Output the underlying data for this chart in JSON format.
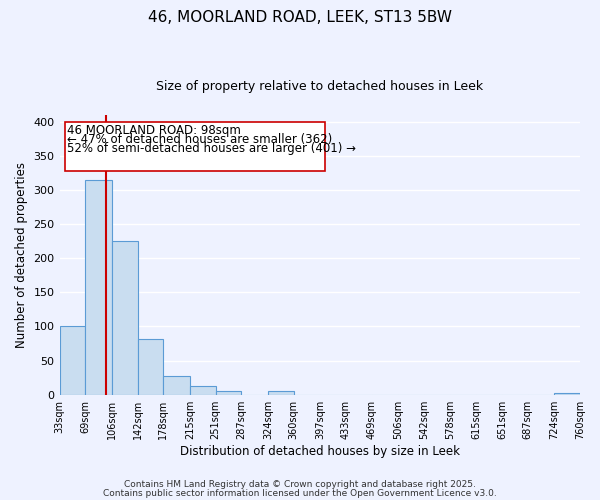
{
  "title": "46, MOORLAND ROAD, LEEK, ST13 5BW",
  "subtitle": "Size of property relative to detached houses in Leek",
  "xlabel": "Distribution of detached houses by size in Leek",
  "ylabel": "Number of detached properties",
  "bin_edges": [
    33,
    69,
    106,
    142,
    178,
    215,
    251,
    287,
    324,
    360,
    397,
    433,
    469,
    506,
    542,
    578,
    615,
    651,
    687,
    724,
    760
  ],
  "bin_labels": [
    "33sqm",
    "69sqm",
    "106sqm",
    "142sqm",
    "178sqm",
    "215sqm",
    "251sqm",
    "287sqm",
    "324sqm",
    "360sqm",
    "397sqm",
    "433sqm",
    "469sqm",
    "506sqm",
    "542sqm",
    "578sqm",
    "615sqm",
    "651sqm",
    "687sqm",
    "724sqm",
    "760sqm"
  ],
  "counts": [
    100,
    315,
    225,
    82,
    28,
    13,
    5,
    0,
    5,
    0,
    0,
    0,
    0,
    0,
    0,
    0,
    0,
    0,
    0,
    2
  ],
  "bar_color": "#c9ddf0",
  "bar_edge_color": "#5b9bd5",
  "red_line_x": 98,
  "red_line_color": "#cc0000",
  "ann_line1": "46 MOORLAND ROAD: 98sqm",
  "ann_line2": "← 47% of detached houses are smaller (362)",
  "ann_line3": "52% of semi-detached houses are larger (401) →",
  "footnote1": "Contains HM Land Registry data © Crown copyright and database right 2025.",
  "footnote2": "Contains public sector information licensed under the Open Government Licence v3.0.",
  "ylim": [
    0,
    410
  ],
  "yticks": [
    0,
    50,
    100,
    150,
    200,
    250,
    300,
    350,
    400
  ],
  "bg_color": "#eef2ff",
  "grid_color": "#ffffff",
  "title_fontsize": 11,
  "subtitle_fontsize": 9,
  "ann_fontsize": 8.5
}
